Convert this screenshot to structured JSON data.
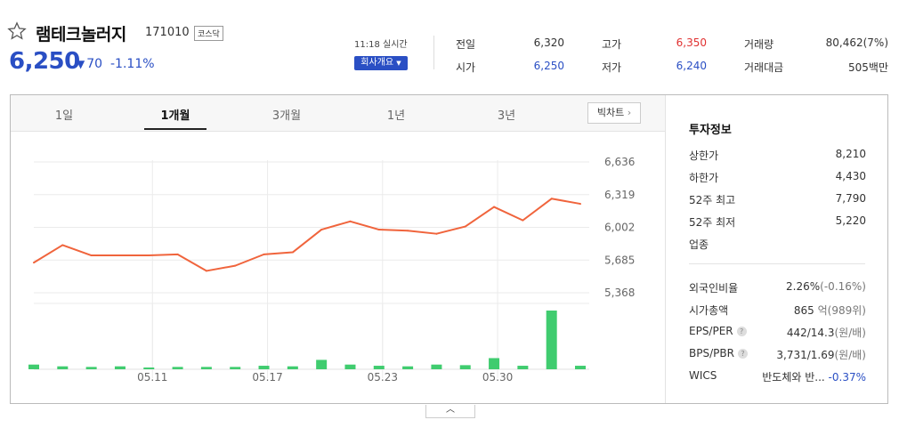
{
  "stock": {
    "name": "램테크놀러지",
    "code": "171010",
    "market": "코스닥",
    "price": "6,250",
    "change": "70",
    "change_pct": "-1.11%",
    "time": "11:18 실시간",
    "company_button": "회사개요",
    "colors": {
      "down": "#2a4fc4",
      "up": "#e03131"
    }
  },
  "quote": {
    "prev_close_label": "전일",
    "prev_close": "6,320",
    "high_label": "고가",
    "high": "6,350",
    "volume_label": "거래량",
    "volume": "80,462(7%)",
    "open_label": "시가",
    "open": "6,250",
    "low_label": "저가",
    "low": "6,240",
    "amount_label": "거래대금",
    "amount": "505백만"
  },
  "tabs": [
    "1일",
    "1개월",
    "3개월",
    "1년",
    "3년"
  ],
  "active_tab": "1개월",
  "big_chart_button": "빅차트",
  "chart_data": {
    "type": "line",
    "y_ticks": [
      "6,636",
      "6,319",
      "6,002",
      "5,685",
      "5,368"
    ],
    "y_tick_values": [
      6636,
      6319,
      6002,
      5685,
      5368
    ],
    "ylim": [
      5368,
      6636
    ],
    "x_ticks": [
      "05.11",
      "05.17",
      "05.23",
      "05.30"
    ],
    "series": [
      {
        "values": [
          5660,
          5830,
          5730,
          5730,
          5730,
          5740,
          5580,
          5630,
          5740,
          5760,
          5980,
          6060,
          5980,
          5970,
          5940,
          6010,
          6200,
          6070,
          6280,
          6230
        ],
        "color": "#f0643c"
      }
    ],
    "volume": [
      8,
      5,
      4,
      5,
      3,
      4,
      4,
      4,
      6,
      5,
      16,
      8,
      6,
      5,
      8,
      7,
      19,
      6,
      100,
      6
    ],
    "volume_color": "#40cc6f"
  },
  "invest": {
    "title": "투자정보",
    "upper_label": "상한가",
    "upper": "8,210",
    "lower_label": "하한가",
    "lower": "4,430",
    "high52_label": "52주 최고",
    "high52": "7,790",
    "low52_label": "52주 최저",
    "low52": "5,220",
    "sector_label": "업종",
    "foreign_label": "외국인비율",
    "foreign": "2.26%",
    "foreign_chg": "(-0.16%)",
    "mcap_label": "시가총액",
    "mcap": "865",
    "mcap_unit": "억(989위)",
    "eps_label": "EPS/PER",
    "eps": "442/14.3",
    "eps_unit": "(원/배)",
    "bps_label": "BPS/PBR",
    "bps": "3,731/1.69",
    "bps_unit": "(원/배)",
    "wics_label": "WICS",
    "wics": "반도체와 반...",
    "wics_chg": "-0.37%"
  },
  "toggle_icon": "chevron-up-icon"
}
